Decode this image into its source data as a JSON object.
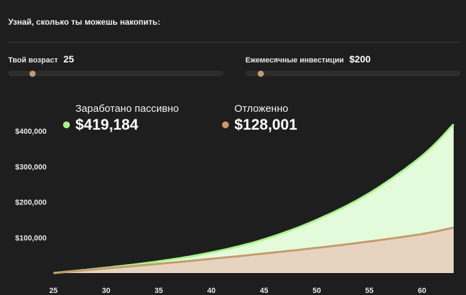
{
  "header": {
    "title": "Узнай, сколько ты можешь накопить:"
  },
  "sliders": {
    "age": {
      "label": "Твой возраст",
      "value": "25",
      "fraction": 0.11
    },
    "investment": {
      "label": "Ежемесячные инвестиции",
      "value": "$200",
      "fraction": 0.07
    }
  },
  "legend": {
    "earned": {
      "label": "Заработано пассивно",
      "value": "$419,184",
      "color": "#a8f58a"
    },
    "saved": {
      "label": "Отложенно",
      "value": "$128,001",
      "color": "#c59b6d"
    }
  },
  "colors": {
    "earned_fill": "#e4fbdb",
    "earned_line": "#a8f58a",
    "saved_fill": "#e7d4c0",
    "saved_line": "#c59b6d"
  },
  "chart_data": {
    "type": "area",
    "x": [
      25,
      30,
      35,
      40,
      45,
      50,
      55,
      60,
      63
    ],
    "xticks": [
      "25",
      "30",
      "35",
      "40",
      "45",
      "50",
      "55",
      "60"
    ],
    "yticks": [
      "$100,000",
      "$200,000",
      "$300,000",
      "$400,000"
    ],
    "ytick_values": [
      100000,
      200000,
      300000,
      400000
    ],
    "xlim": [
      25,
      63
    ],
    "ylim": [
      0,
      400000
    ],
    "series": [
      {
        "name": "Заработано пассивно",
        "values": [
          0,
          15000,
          33000,
          58000,
          95000,
          150000,
          225000,
          330000,
          419184
        ]
      },
      {
        "name": "Отложенно",
        "values": [
          0,
          13000,
          26000,
          40000,
          55000,
          71000,
          89000,
          110000,
          128001
        ]
      }
    ]
  }
}
